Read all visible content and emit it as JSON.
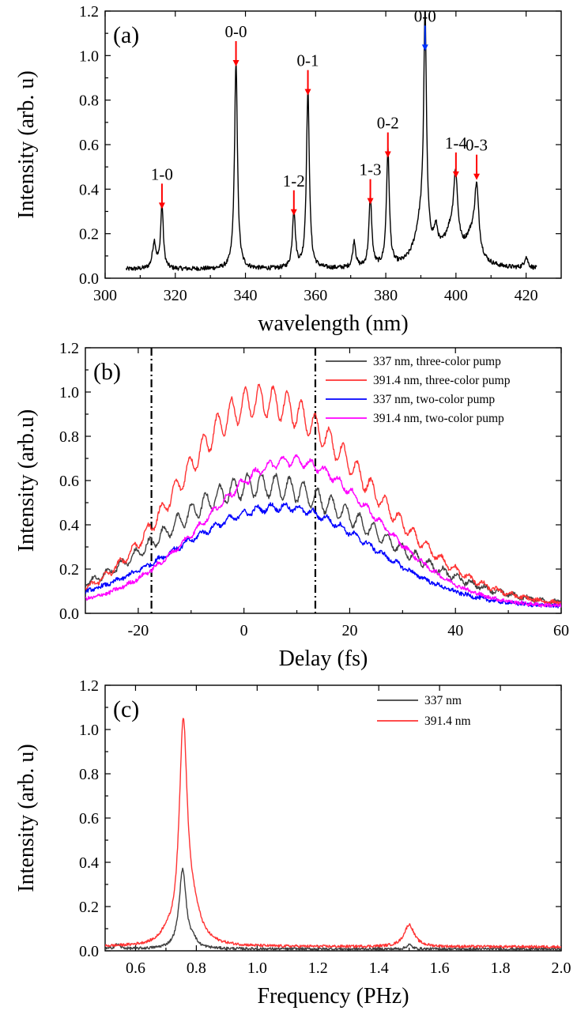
{
  "chart_data": [
    {
      "type": "line",
      "panel_label": "(a)",
      "xlabel": "wavelength (nm)",
      "ylabel": "Intensity (arb. u)",
      "xlim": [
        300,
        430
      ],
      "ylim": [
        0.0,
        1.2
      ],
      "xticks": [
        300,
        320,
        340,
        360,
        380,
        400,
        420
      ],
      "xtick_labels": [
        "300",
        "320",
        "340",
        "360",
        "380",
        "400",
        "420"
      ],
      "yticks": [
        0.0,
        0.2,
        0.4,
        0.6,
        0.8,
        1.0,
        1.2
      ],
      "ytick_labels": [
        "0.0",
        "0.2",
        "0.4",
        "0.6",
        "0.8",
        "1.0",
        "1.2"
      ],
      "series": [
        {
          "color": "#000000",
          "baseline": 0.04,
          "x_range": [
            306,
            423
          ],
          "peaks": [
            {
              "x": 314.0,
              "h": 0.12,
              "w": 0.6
            },
            {
              "x": 316.2,
              "h": 0.29,
              "w": 0.45
            },
            {
              "x": 337.3,
              "h": 0.93,
              "w": 0.5
            },
            {
              "x": 353.8,
              "h": 0.26,
              "w": 0.5
            },
            {
              "x": 357.8,
              "h": 0.8,
              "w": 0.5
            },
            {
              "x": 371.0,
              "h": 0.12,
              "w": 0.5
            },
            {
              "x": 375.6,
              "h": 0.31,
              "w": 0.5
            },
            {
              "x": 380.6,
              "h": 0.52,
              "w": 0.5
            },
            {
              "x": 391.2,
              "h": 1.0,
              "w": 0.45
            },
            {
              "x": 390.2,
              "h": 0.2,
              "w": 2.2
            },
            {
              "x": 394.3,
              "h": 0.1,
              "w": 0.7
            },
            {
              "x": 399.9,
              "h": 0.3,
              "w": 0.7
            },
            {
              "x": 398.5,
              "h": 0.14,
              "w": 2.6
            },
            {
              "x": 405.9,
              "h": 0.28,
              "w": 0.7
            },
            {
              "x": 404.5,
              "h": 0.12,
              "w": 2.2
            },
            {
              "x": 420.0,
              "h": 0.05,
              "w": 0.6
            }
          ]
        }
      ],
      "annotations": [
        {
          "text": "1-0",
          "x": 316.2,
          "y": 0.29,
          "arrow": "#ff0000"
        },
        {
          "text": "0-0",
          "x": 337.3,
          "y": 0.93,
          "arrow": "#ff0000"
        },
        {
          "text": "1-2",
          "x": 353.8,
          "y": 0.26,
          "arrow": "#ff0000"
        },
        {
          "text": "0-1",
          "x": 357.8,
          "y": 0.8,
          "arrow": "#ff0000"
        },
        {
          "text": "1-3",
          "x": 375.6,
          "y": 0.31,
          "arrow": "#ff0000"
        },
        {
          "text": "0-2",
          "x": 380.6,
          "y": 0.52,
          "arrow": "#ff0000"
        },
        {
          "text": "0-0",
          "x": 391.2,
          "y": 1.0,
          "arrow": "#0033ff"
        },
        {
          "text": "1-4",
          "x": 400.0,
          "y": 0.43,
          "arrow": "#ff0000"
        },
        {
          "text": "0-3",
          "x": 405.9,
          "y": 0.42,
          "arrow": "#ff0000"
        }
      ]
    },
    {
      "type": "line",
      "panel_label": "(b)",
      "xlabel": "Delay (fs)",
      "ylabel": "Intensity (arb.u)",
      "xlim": [
        -30,
        60
      ],
      "ylim": [
        0.0,
        1.2
      ],
      "xticks": [
        -20,
        0,
        20,
        40,
        60
      ],
      "xtick_labels": [
        "-20",
        "0",
        "20",
        "40",
        "60"
      ],
      "yticks": [
        0.0,
        0.2,
        0.4,
        0.6,
        0.8,
        1.0,
        1.2
      ],
      "ytick_labels": [
        "0.0",
        "0.2",
        "0.4",
        "0.6",
        "0.8",
        "1.0",
        "1.2"
      ],
      "vlines": [
        -17.5,
        13.5
      ],
      "legend_position": "top-right",
      "series": [
        {
          "name": "337 nm, three-color pump",
          "color": "#404040",
          "envelope": {
            "peak": 0.55,
            "center": 3,
            "sigma_left": 18,
            "sigma_right": 22,
            "floor": 0.03
          },
          "oscillation": 0.05
        },
        {
          "name": "391.4 nm, three-color pump",
          "color": "#ff3333",
          "envelope": {
            "peak": 0.93,
            "center": 3,
            "sigma_left": 15,
            "sigma_right": 20,
            "floor": 0.03
          },
          "oscillation": 0.07
        },
        {
          "name": "337 nm, two-color pump",
          "color": "#0000ff",
          "envelope": {
            "peak": 0.45,
            "center": 7,
            "sigma_left": 19,
            "sigma_right": 17,
            "floor": 0.03
          },
          "oscillation": 0.015
        },
        {
          "name": "391.4 nm, two-color pump",
          "color": "#ff00ff",
          "envelope": {
            "peak": 0.66,
            "center": 9,
            "sigma_left": 16,
            "sigma_right": 16,
            "floor": 0.03
          },
          "oscillation": 0.02
        }
      ]
    },
    {
      "type": "line",
      "panel_label": "(c)",
      "xlabel": "Frequency (PHz)",
      "ylabel": "Intensity (arb. u)",
      "xlim": [
        0.5,
        2.0
      ],
      "ylim": [
        0.0,
        1.2
      ],
      "xticks": [
        0.6,
        0.8,
        1.0,
        1.2,
        1.4,
        1.6,
        1.8,
        2.0
      ],
      "xtick_labels": [
        "0.6",
        "0.8",
        "1.0",
        "1.2",
        "1.4",
        "1.6",
        "1.8",
        "2.0"
      ],
      "yticks": [
        0.0,
        0.2,
        0.4,
        0.6,
        0.8,
        1.0,
        1.2
      ],
      "ytick_labels": [
        "0.0",
        "0.2",
        "0.4",
        "0.6",
        "0.8",
        "1.0",
        "1.2"
      ],
      "legend_position": "top-right",
      "series": [
        {
          "name": "337 nm",
          "color": "#404040",
          "baseline": 0.008,
          "peaks": [
            {
              "x": 0.755,
              "h": 0.36,
              "w": 0.014
            },
            {
              "x": 0.54,
              "h": 0.02,
              "w": 0.01
            },
            {
              "x": 0.79,
              "h": 0.03,
              "w": 0.01
            },
            {
              "x": 1.5,
              "h": 0.02,
              "w": 0.01
            }
          ]
        },
        {
          "name": "391.4 nm",
          "color": "#ff3333",
          "baseline": 0.018,
          "peaks": [
            {
              "x": 0.757,
              "h": 0.98,
              "w": 0.016
            },
            {
              "x": 0.79,
              "h": 0.12,
              "w": 0.03
            },
            {
              "x": 1.5,
              "h": 0.1,
              "w": 0.02
            },
            {
              "x": 0.7,
              "h": 0.03,
              "w": 0.02
            }
          ]
        }
      ]
    }
  ]
}
